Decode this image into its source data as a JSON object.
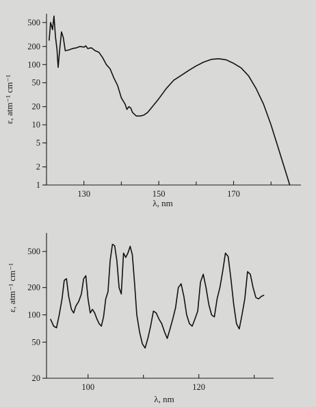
{
  "chart_data": [
    {
      "type": "line",
      "xlabel": "λ, nm",
      "ylabel": "ε, atm⁻¹ cm⁻¹",
      "yscale": "log",
      "xlim": [
        120,
        188
      ],
      "ylim": [
        1,
        700
      ],
      "x_ticks": [
        130,
        150,
        170
      ],
      "x_minor_ticks": [
        120,
        140,
        160,
        180
      ],
      "y_ticks": [
        {
          "v": 1,
          "label": "1"
        },
        {
          "v": 2,
          "label": "2"
        },
        {
          "v": 5,
          "label": "5"
        },
        {
          "v": 10,
          "label": "10"
        },
        {
          "v": 20,
          "label": "20"
        },
        {
          "v": 50,
          "label": "50"
        },
        {
          "v": 100,
          "label": "100"
        },
        {
          "v": 200,
          "label": "200"
        },
        {
          "v": 500,
          "label": "500"
        }
      ],
      "series": [
        {
          "points": [
            [
              120.7,
              250
            ],
            [
              121.1,
              500
            ],
            [
              121.6,
              380
            ],
            [
              122.0,
              640
            ],
            [
              122.4,
              290
            ],
            [
              122.8,
              180
            ],
            [
              123.1,
              90
            ],
            [
              123.6,
              200
            ],
            [
              124.0,
              350
            ],
            [
              124.5,
              280
            ],
            [
              125.0,
              170
            ],
            [
              126.0,
              175
            ],
            [
              127.0,
              185
            ],
            [
              128.0,
              190
            ],
            [
              129.0,
              200
            ],
            [
              130.0,
              195
            ],
            [
              130.5,
              205
            ],
            [
              131.0,
              185
            ],
            [
              132.0,
              190
            ],
            [
              133.0,
              170
            ],
            [
              134.0,
              160
            ],
            [
              135.0,
              130
            ],
            [
              136.0,
              100
            ],
            [
              137.0,
              85
            ],
            [
              138.0,
              60
            ],
            [
              139.0,
              45
            ],
            [
              140.0,
              28
            ],
            [
              141.0,
              22
            ],
            [
              141.5,
              18
            ],
            [
              142.0,
              20
            ],
            [
              142.5,
              19
            ],
            [
              143.0,
              16
            ],
            [
              144.0,
              14
            ],
            [
              145.0,
              14
            ],
            [
              146.0,
              14.5
            ],
            [
              147.0,
              16
            ],
            [
              148.0,
              19
            ],
            [
              150.0,
              27
            ],
            [
              152.0,
              40
            ],
            [
              154.0,
              55
            ],
            [
              156.0,
              66
            ],
            [
              158.0,
              80
            ],
            [
              160.0,
              95
            ],
            [
              162.0,
              110
            ],
            [
              164.0,
              122
            ],
            [
              166.0,
              125
            ],
            [
              168.0,
              120
            ],
            [
              170.0,
              105
            ],
            [
              172.0,
              88
            ],
            [
              174.0,
              65
            ],
            [
              176.0,
              40
            ],
            [
              178.0,
              22
            ],
            [
              180.0,
              10
            ],
            [
              182.0,
              4
            ],
            [
              184.0,
              1.6
            ],
            [
              185.0,
              1
            ]
          ]
        }
      ]
    },
    {
      "type": "line",
      "xlabel": "λ, nm",
      "ylabel": "ε, atm⁻¹ cm⁻¹",
      "yscale": "log",
      "xlim": [
        92.5,
        133.5
      ],
      "ylim": [
        20,
        800
      ],
      "x_ticks": [
        100,
        120
      ],
      "x_minor_ticks": [
        110,
        130
      ],
      "y_ticks": [
        {
          "v": 20,
          "label": "20"
        },
        {
          "v": 50,
          "label": "50"
        },
        {
          "v": 100,
          "label": "100"
        },
        {
          "v": 200,
          "label": "200"
        },
        {
          "v": 500,
          "label": "500"
        }
      ],
      "series": [
        {
          "points": [
            [
              93.2,
              90
            ],
            [
              93.8,
              75
            ],
            [
              94.3,
              72
            ],
            [
              94.8,
              100
            ],
            [
              95.3,
              150
            ],
            [
              95.7,
              240
            ],
            [
              96.1,
              250
            ],
            [
              96.5,
              160
            ],
            [
              97.0,
              115
            ],
            [
              97.4,
              105
            ],
            [
              97.8,
              125
            ],
            [
              98.3,
              140
            ],
            [
              98.8,
              170
            ],
            [
              99.2,
              250
            ],
            [
              99.6,
              270
            ],
            [
              100.0,
              150
            ],
            [
              100.4,
              105
            ],
            [
              100.8,
              115
            ],
            [
              101.2,
              105
            ],
            [
              101.6,
              90
            ],
            [
              102.0,
              80
            ],
            [
              102.4,
              75
            ],
            [
              102.8,
              95
            ],
            [
              103.2,
              150
            ],
            [
              103.6,
              180
            ],
            [
              104.0,
              400
            ],
            [
              104.4,
              600
            ],
            [
              104.8,
              580
            ],
            [
              105.2,
              400
            ],
            [
              105.6,
              200
            ],
            [
              106.0,
              170
            ],
            [
              106.4,
              480
            ],
            [
              106.8,
              430
            ],
            [
              107.2,
              480
            ],
            [
              107.6,
              570
            ],
            [
              108.0,
              460
            ],
            [
              108.4,
              220
            ],
            [
              108.8,
              100
            ],
            [
              109.3,
              65
            ],
            [
              109.8,
              48
            ],
            [
              110.3,
              43
            ],
            [
              110.8,
              55
            ],
            [
              111.3,
              75
            ],
            [
              111.8,
              110
            ],
            [
              112.3,
              105
            ],
            [
              112.8,
              90
            ],
            [
              113.3,
              80
            ],
            [
              113.8,
              65
            ],
            [
              114.3,
              55
            ],
            [
              114.8,
              70
            ],
            [
              115.3,
              90
            ],
            [
              115.8,
              120
            ],
            [
              116.3,
              200
            ],
            [
              116.8,
              220
            ],
            [
              117.3,
              160
            ],
            [
              117.8,
              100
            ],
            [
              118.3,
              80
            ],
            [
              118.8,
              75
            ],
            [
              119.3,
              90
            ],
            [
              119.8,
              110
            ],
            [
              120.3,
              230
            ],
            [
              120.8,
              280
            ],
            [
              121.3,
              200
            ],
            [
              121.8,
              130
            ],
            [
              122.3,
              100
            ],
            [
              122.8,
              95
            ],
            [
              123.3,
              150
            ],
            [
              123.8,
              200
            ],
            [
              124.3,
              300
            ],
            [
              124.8,
              480
            ],
            [
              125.3,
              440
            ],
            [
              125.8,
              250
            ],
            [
              126.3,
              130
            ],
            [
              126.8,
              80
            ],
            [
              127.3,
              70
            ],
            [
              127.8,
              100
            ],
            [
              128.3,
              150
            ],
            [
              128.8,
              300
            ],
            [
              129.3,
              280
            ],
            [
              129.8,
              200
            ],
            [
              130.3,
              155
            ],
            [
              130.8,
              150
            ],
            [
              131.3,
              160
            ],
            [
              131.8,
              165
            ]
          ]
        }
      ]
    }
  ]
}
